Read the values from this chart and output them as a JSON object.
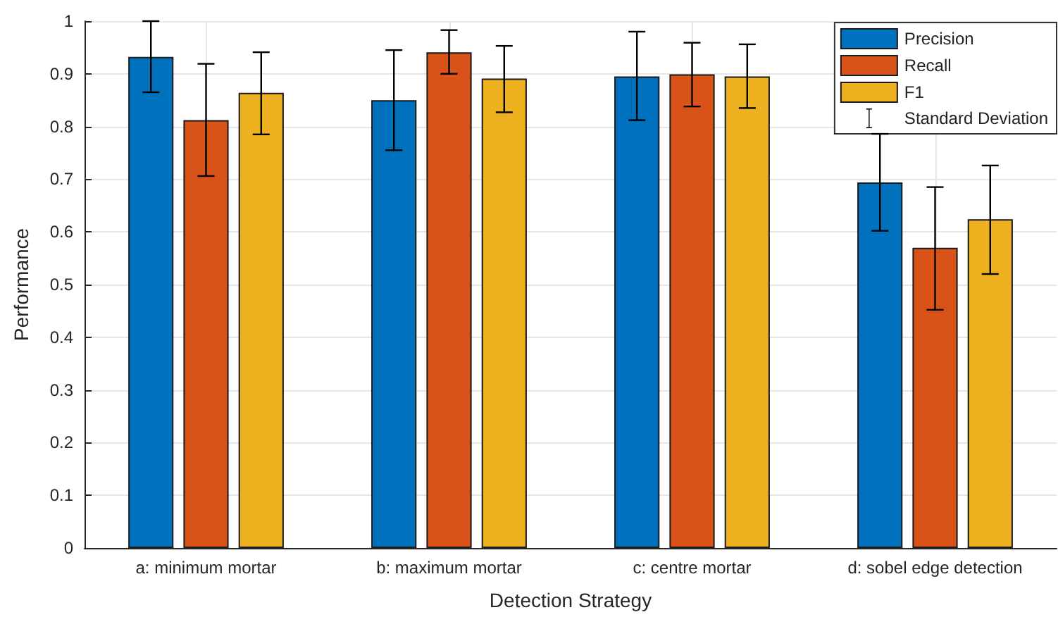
{
  "chart_data": {
    "type": "bar",
    "xlabel": "Detection Strategy",
    "ylabel": "Performance",
    "categories": [
      "a: minimum mortar",
      "b: maximum mortar",
      "c: centre mortar",
      "d: sobel edge detection"
    ],
    "series": [
      {
        "name": "Precision",
        "color": "#0072bd",
        "values": [
          0.932,
          0.85,
          0.895,
          0.694
        ],
        "errors": [
          [
            0.865,
            1.0
          ],
          [
            0.755,
            0.945
          ],
          [
            0.812,
            0.98
          ],
          [
            0.602,
            0.786
          ]
        ]
      },
      {
        "name": "Recall",
        "color": "#d95319",
        "values": [
          0.812,
          0.941,
          0.899,
          0.57
        ],
        "errors": [
          [
            0.706,
            0.919
          ],
          [
            0.9,
            0.983
          ],
          [
            0.838,
            0.959
          ],
          [
            0.452,
            0.685
          ]
        ]
      },
      {
        "name": "F1",
        "color": "#edb120",
        "values": [
          0.864,
          0.891,
          0.895,
          0.624
        ],
        "errors": [
          [
            0.785,
            0.941
          ],
          [
            0.827,
            0.953
          ],
          [
            0.835,
            0.956
          ],
          [
            0.52,
            0.726
          ]
        ]
      }
    ],
    "annotations": [
      "Standard Deviation"
    ],
    "ylim": [
      0,
      1
    ],
    "yticks": [
      0,
      0.1,
      0.2,
      0.3,
      0.4,
      0.5,
      0.6,
      0.7,
      0.8,
      0.9,
      1
    ],
    "grid": true,
    "legend": "top right"
  }
}
